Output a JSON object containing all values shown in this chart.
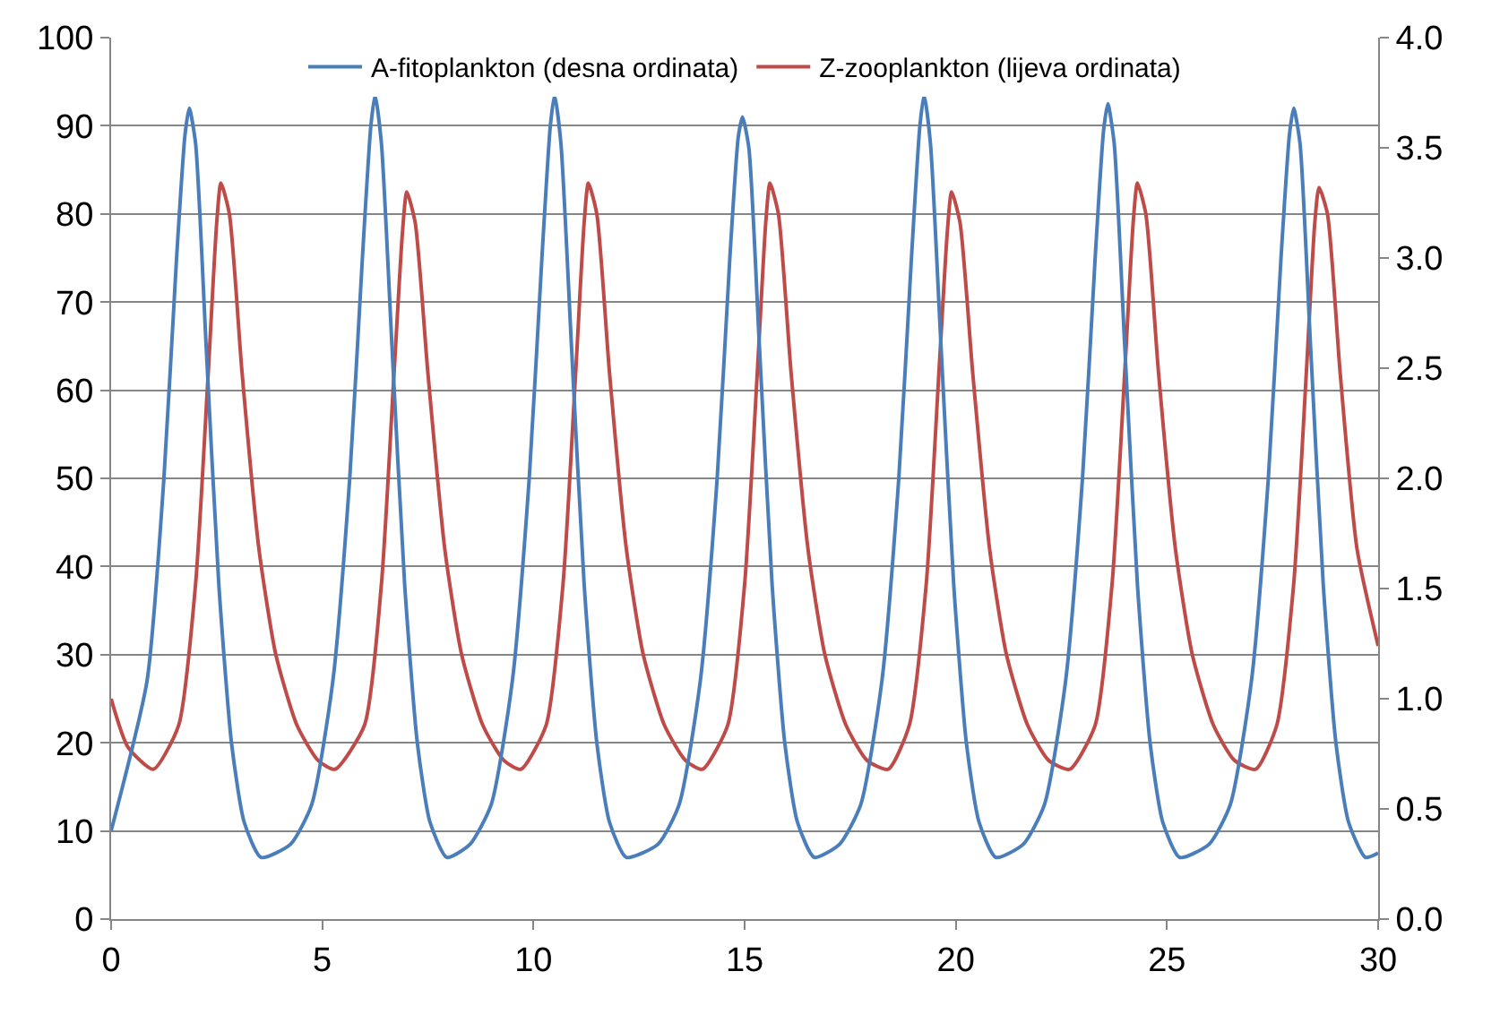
{
  "chart_data": {
    "type": "line",
    "legend": "top",
    "grid": "y",
    "marker": "none",
    "line_style": "solid",
    "xlim": [
      0,
      30
    ],
    "xticks": [
      0,
      5,
      10,
      15,
      20,
      25,
      30
    ],
    "ylim": [
      0,
      100
    ],
    "yticks": [
      0,
      10,
      20,
      30,
      40,
      50,
      60,
      70,
      80,
      90,
      100
    ],
    "y2lim": [
      0,
      4
    ],
    "y2ticks": [
      {
        "value": 0,
        "label": "0.0"
      },
      {
        "value": 0.5,
        "label": "0.5"
      },
      {
        "value": 1,
        "label": "1.0"
      },
      {
        "value": 1.5,
        "label": "1.5"
      },
      {
        "value": 2,
        "label": "2.0"
      },
      {
        "value": 2.5,
        "label": "2.5"
      },
      {
        "value": 3,
        "label": "3.0"
      },
      {
        "value": 3.5,
        "label": "3.5"
      },
      {
        "value": 4,
        "label": "4.0"
      }
    ],
    "series": [
      {
        "name": "A-fitoplankton (desna ordinata)",
        "color": "#4a7ebb",
        "axis": "y2",
        "x": [
          0,
          0.85,
          1.25,
          1.55,
          1.75,
          1.85,
          2.0,
          2.25,
          2.55,
          2.85,
          3.15,
          3.55,
          4.25,
          4.75,
          5.25,
          5.65,
          5.95,
          6.15,
          6.25,
          6.4,
          6.65,
          6.95,
          7.25,
          7.55,
          7.95,
          8.5,
          9.0,
          9.5,
          9.9,
          10.2,
          10.4,
          10.5,
          10.65,
          10.9,
          11.2,
          11.5,
          11.8,
          12.2,
          12.95,
          13.45,
          13.95,
          14.35,
          14.65,
          14.85,
          14.95,
          15.1,
          15.35,
          15.65,
          15.95,
          16.25,
          16.65,
          17.25,
          17.75,
          18.25,
          18.65,
          18.95,
          19.15,
          19.25,
          19.4,
          19.65,
          19.95,
          20.25,
          20.55,
          20.95,
          21.6,
          22.1,
          22.6,
          23.0,
          23.3,
          23.5,
          23.6,
          23.75,
          24.0,
          24.3,
          24.6,
          24.9,
          25.3,
          26.0,
          26.5,
          27.0,
          27.4,
          27.7,
          27.9,
          28.0,
          28.15,
          28.4,
          28.7,
          29.0,
          29.3,
          29.7,
          30
        ],
        "values": [
          0.4,
          1.08,
          2.0,
          3.0,
          3.56,
          3.68,
          3.52,
          2.6,
          1.52,
          0.8,
          0.44,
          0.28,
          0.34,
          0.52,
          1.08,
          2.0,
          3.0,
          3.6,
          3.74,
          3.52,
          2.6,
          1.52,
          0.8,
          0.44,
          0.28,
          0.34,
          0.52,
          1.08,
          2.0,
          3.0,
          3.6,
          3.74,
          3.52,
          2.6,
          1.52,
          0.8,
          0.44,
          0.28,
          0.34,
          0.52,
          1.08,
          2.0,
          3.0,
          3.55,
          3.64,
          3.5,
          2.6,
          1.52,
          0.8,
          0.44,
          0.28,
          0.34,
          0.52,
          1.08,
          2.0,
          3.0,
          3.6,
          3.74,
          3.52,
          2.6,
          1.52,
          0.8,
          0.44,
          0.28,
          0.34,
          0.52,
          1.08,
          2.0,
          3.0,
          3.58,
          3.7,
          3.52,
          2.6,
          1.52,
          0.8,
          0.44,
          0.28,
          0.34,
          0.52,
          1.08,
          2.0,
          3.0,
          3.56,
          3.68,
          3.52,
          2.6,
          1.52,
          0.8,
          0.44,
          0.28,
          0.3
        ]
      },
      {
        "name": "Z-zooplankton (lijeva ordinata)",
        "color": "#be4b48",
        "x": [
          0,
          0.4,
          1.0,
          1.6,
          2.0,
          2.3,
          2.5,
          2.6,
          2.8,
          3.1,
          3.5,
          3.9,
          4.4,
          4.9,
          5.3,
          6.0,
          6.4,
          6.7,
          6.9,
          7.0,
          7.2,
          7.5,
          7.9,
          8.3,
          8.8,
          9.3,
          9.7,
          10.3,
          10.7,
          11.0,
          11.2,
          11.3,
          11.5,
          11.8,
          12.2,
          12.6,
          13.1,
          13.6,
          14.0,
          14.6,
          15.0,
          15.3,
          15.5,
          15.6,
          15.8,
          16.1,
          16.5,
          16.9,
          17.4,
          17.9,
          18.4,
          18.9,
          19.3,
          19.6,
          19.8,
          19.9,
          20.1,
          20.4,
          20.8,
          21.2,
          21.7,
          22.2,
          22.7,
          23.3,
          23.7,
          24.0,
          24.2,
          24.3,
          24.5,
          24.8,
          25.2,
          25.6,
          26.1,
          26.6,
          27.1,
          27.6,
          28.0,
          28.3,
          28.5,
          28.6,
          28.8,
          29.1,
          29.5,
          30
        ],
        "values": [
          25,
          19.5,
          17,
          22,
          38,
          62,
          79,
          83.5,
          80,
          62,
          42,
          30,
          22,
          18,
          17,
          22,
          38,
          62,
          78,
          82.5,
          79,
          62,
          42,
          30,
          22,
          18,
          17,
          22,
          38,
          62,
          79,
          83.5,
          80,
          62,
          42,
          30,
          22,
          18,
          17,
          22,
          38,
          62,
          79,
          83.5,
          80,
          62,
          42,
          30,
          22,
          18,
          17,
          22,
          38,
          62,
          78,
          82.5,
          79,
          62,
          42,
          30,
          22,
          18,
          17,
          22,
          38,
          62,
          79,
          83.5,
          80,
          62,
          42,
          30,
          22,
          18,
          17,
          22,
          38,
          62,
          79,
          83,
          80,
          62,
          42,
          31
        ]
      }
    ]
  }
}
